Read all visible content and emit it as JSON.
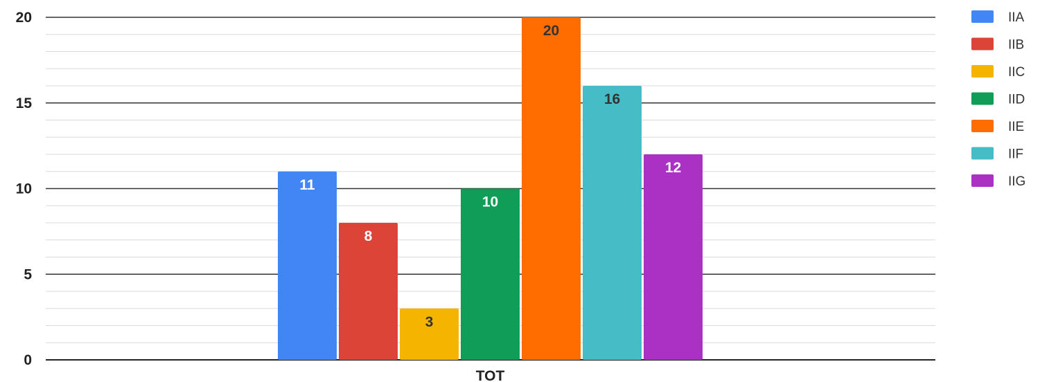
{
  "chart_data": {
    "type": "bar",
    "categories": [
      "TOT"
    ],
    "series": [
      {
        "name": "IIA",
        "values": [
          11
        ],
        "color": "#4285F4",
        "label_color": "#ffffff"
      },
      {
        "name": "IIB",
        "values": [
          8
        ],
        "color": "#DB4437",
        "label_color": "#ffffff"
      },
      {
        "name": "IIC",
        "values": [
          3
        ],
        "color": "#F4B400",
        "label_color": "#333333"
      },
      {
        "name": "IID",
        "values": [
          10
        ],
        "color": "#0F9D58",
        "label_color": "#ffffff"
      },
      {
        "name": "IIE",
        "values": [
          20
        ],
        "color": "#FF6D01",
        "label_color": "#333333"
      },
      {
        "name": "IIF",
        "values": [
          16
        ],
        "color": "#46BDC6",
        "label_color": "#333333"
      },
      {
        "name": "IIG",
        "values": [
          12
        ],
        "color": "#AB30C4",
        "label_color": "#ffffff"
      }
    ],
    "title": "",
    "xlabel": "",
    "ylabel": "",
    "ylim": [
      0,
      20
    ],
    "yticks": [
      "0",
      "5",
      "10",
      "15",
      "20"
    ],
    "grid": true,
    "legend_position": "right"
  }
}
